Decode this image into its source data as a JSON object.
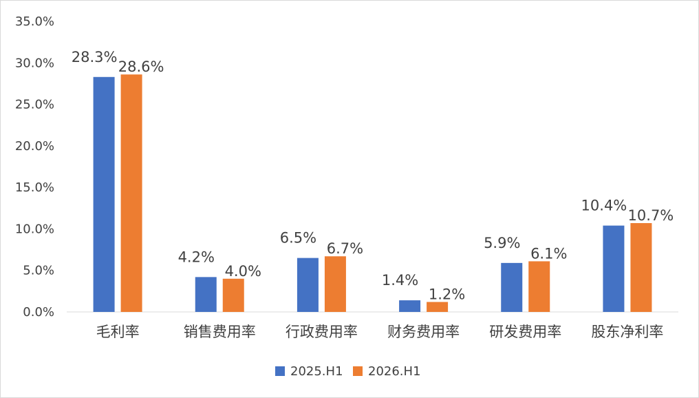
{
  "chart_data": {
    "type": "bar",
    "categories": [
      "毛利率",
      "销售费用率",
      "行政费用率",
      "财务费用率",
      "研发费用率",
      "股东净利率"
    ],
    "series": [
      {
        "name": "2025.H1",
        "color": "#4472C4",
        "values": [
          28.3,
          4.2,
          6.5,
          1.4,
          5.9,
          10.4
        ],
        "labels": [
          "28.3%",
          "4.2%",
          "6.5%",
          "1.4%",
          "5.9%",
          "10.4%"
        ]
      },
      {
        "name": "2026.H1",
        "color": "#ED7D31",
        "values": [
          28.6,
          4.0,
          6.7,
          1.2,
          6.1,
          10.7
        ],
        "labels": [
          "28.6%",
          "4.0%",
          "6.7%",
          "1.2%",
          "6.1%",
          "10.7%"
        ]
      }
    ],
    "ylim": [
      0,
      35
    ],
    "yticks": [
      0,
      5,
      10,
      15,
      20,
      25,
      30,
      35
    ],
    "ytick_labels": [
      "0.0%",
      "5.0%",
      "10.0%",
      "15.0%",
      "20.0%",
      "25.0%",
      "30.0%",
      "35.0%"
    ],
    "gridlines": false,
    "legend_position": "bottom"
  }
}
